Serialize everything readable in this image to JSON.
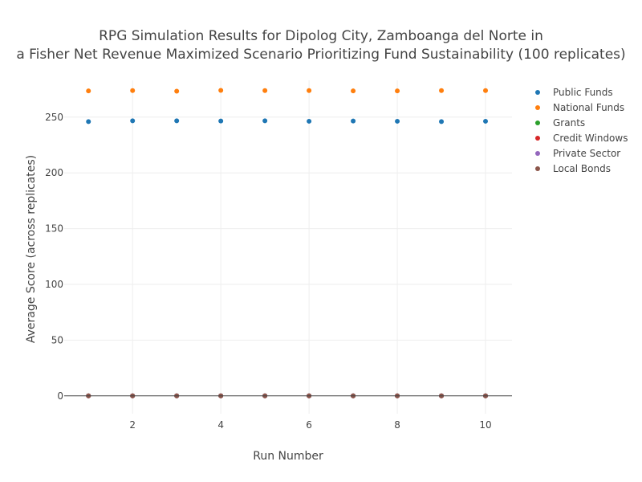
{
  "chart_data": {
    "type": "scatter",
    "title_lines": [
      "RPG Simulation Results for Dipolog City, Zamboanga del Norte in",
      "a Fisher Net Revenue Maximized Scenario Prioritizing Fund Sustainability (100 replicates)"
    ],
    "xlabel": "Run Number",
    "ylabel": "Average Score (across replicates)",
    "xlim": [
      0.45,
      10.6
    ],
    "ylim": [
      -16,
      283
    ],
    "x_ticks": [
      2,
      4,
      6,
      8,
      10
    ],
    "y_ticks": [
      0,
      50,
      100,
      150,
      200,
      250
    ],
    "grid": true,
    "legend_position": "top-right",
    "x": [
      1,
      2,
      3,
      4,
      5,
      6,
      7,
      8,
      9,
      10
    ],
    "series": [
      {
        "name": "Public Funds",
        "color": "#1f77b4",
        "values": [
          246,
          246.7,
          246.7,
          246.5,
          246.7,
          246.3,
          246.5,
          246.3,
          246,
          246.3
        ]
      },
      {
        "name": "National Funds",
        "color": "#ff7f0e",
        "values": [
          273.5,
          273.8,
          273.3,
          274,
          273.8,
          273.8,
          273.5,
          273.5,
          273.8,
          273.8
        ]
      },
      {
        "name": "Grants",
        "color": "#2ca02c",
        "values": [
          0,
          0,
          0,
          0,
          0,
          0,
          0,
          0,
          0,
          0
        ]
      },
      {
        "name": "Credit Windows",
        "color": "#d62728",
        "values": [
          0,
          0,
          0,
          0,
          0,
          0,
          0,
          0,
          0,
          0
        ]
      },
      {
        "name": "Private Sector",
        "color": "#9467bd",
        "values": [
          0,
          0,
          0,
          0,
          0,
          0,
          0,
          0,
          0,
          0
        ]
      },
      {
        "name": "Local Bonds",
        "color": "#8c564b",
        "values": [
          0,
          0,
          0,
          0,
          0,
          0,
          0,
          0,
          0,
          0
        ]
      }
    ]
  }
}
